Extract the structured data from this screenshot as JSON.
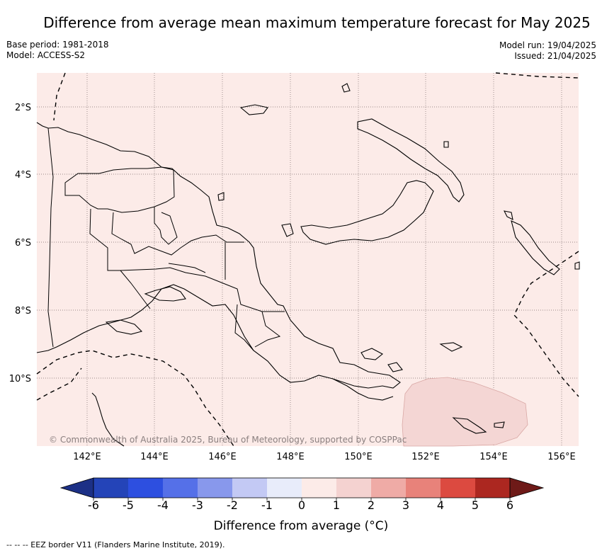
{
  "title": "Difference from average mean maximum temperature forecast for May 2025",
  "base_period": "Base period: 1981-2018",
  "model": "Model: ACCESS-S2",
  "model_run": "Model run: 19/04/2025",
  "issued": "Issued: 21/04/2025",
  "copyright": "© Commonwealth of Australia 2025, Bureau of Meteorology, supported by COSPPac",
  "colorbar": {
    "title": "Difference from average (°C)",
    "ticks": [
      "-6",
      "-5",
      "-4",
      "-3",
      "-2",
      "-1",
      "0",
      "1",
      "2",
      "3",
      "4",
      "5",
      "6"
    ],
    "colors": [
      "#2444b8",
      "#2d4fe0",
      "#5570e8",
      "#8898ec",
      "#c3c9f4",
      "#e8ecfa",
      "#fcebe8",
      "#f4d2d0",
      "#efaba6",
      "#e8827a",
      "#dc4a40",
      "#ac2720"
    ],
    "low_extend_color": "#1c3086",
    "high_extend_color": "#6e1a18"
  },
  "map": {
    "lat_labels": [
      "2°S",
      "4°S",
      "6°S",
      "8°S",
      "10°S"
    ],
    "lon_labels": [
      "142°E",
      "144°E",
      "146°E",
      "148°E",
      "150°E",
      "152°E",
      "154°E",
      "156°E"
    ],
    "fill_color": "#fcebe8",
    "highlight_color": "#f4d6d4"
  },
  "footnote": "--  --  -- EEZ border V11 (Flanders Marine Institute, 2019)."
}
